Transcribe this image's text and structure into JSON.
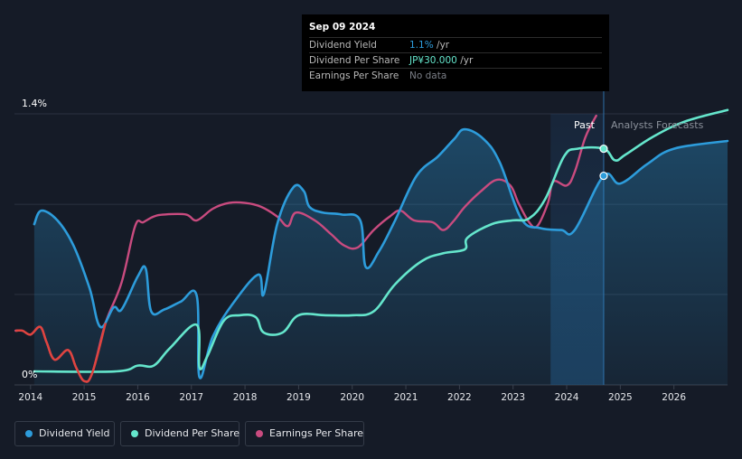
{
  "chart_data": {
    "type": "line",
    "y_axis": {
      "labels": [
        "1.4%",
        "0%"
      ],
      "ylim": [
        0,
        1.4
      ]
    },
    "x_axis": {
      "ticks": [
        "2014",
        "2015",
        "2016",
        "2017",
        "2018",
        "2019",
        "2020",
        "2021",
        "2022",
        "2023",
        "2024",
        "2025",
        "2026"
      ],
      "xlim": [
        2013.7,
        2027.0
      ]
    },
    "regions": {
      "past_label": "Past",
      "forecast_label": "Analysts Forecasts",
      "divider_x": 2024.69,
      "highlight_start": 2023.7
    },
    "tooltip": {
      "date": "Sep 09 2024",
      "rows": [
        {
          "label": "Dividend Yield",
          "value": "1.1%",
          "unit": " /yr",
          "color": "#2d9cdb"
        },
        {
          "label": "Dividend Per Share",
          "value": "JP¥30.000",
          "unit": " /yr",
          "color": "#65e6cc"
        },
        {
          "label": "Earnings Per Share",
          "value": "No data",
          "unit": "",
          "color": "#7b7f87"
        }
      ]
    },
    "series": [
      {
        "name": "Dividend Yield",
        "color": "#2d9cdb",
        "fill": true,
        "points": [
          [
            2014.07,
            0.83
          ],
          [
            2014.2,
            0.9
          ],
          [
            2014.5,
            0.85
          ],
          [
            2014.8,
            0.72
          ],
          [
            2015.1,
            0.5
          ],
          [
            2015.3,
            0.3
          ],
          [
            2015.55,
            0.4
          ],
          [
            2015.7,
            0.39
          ],
          [
            2016.0,
            0.56
          ],
          [
            2016.15,
            0.6
          ],
          [
            2016.25,
            0.38
          ],
          [
            2016.5,
            0.39
          ],
          [
            2016.8,
            0.43
          ],
          [
            2017.1,
            0.46
          ],
          [
            2017.15,
            0.04
          ],
          [
            2017.4,
            0.25
          ],
          [
            2017.8,
            0.43
          ],
          [
            2018.25,
            0.57
          ],
          [
            2018.35,
            0.47
          ],
          [
            2018.6,
            0.83
          ],
          [
            2018.9,
            1.02
          ],
          [
            2019.1,
            1.0
          ],
          [
            2019.2,
            0.92
          ],
          [
            2019.45,
            0.89
          ],
          [
            2019.8,
            0.88
          ],
          [
            2020.15,
            0.85
          ],
          [
            2020.25,
            0.61
          ],
          [
            2020.5,
            0.69
          ],
          [
            2020.8,
            0.85
          ],
          [
            2021.2,
            1.08
          ],
          [
            2021.6,
            1.18
          ],
          [
            2021.9,
            1.27
          ],
          [
            2022.1,
            1.32
          ],
          [
            2022.45,
            1.27
          ],
          [
            2022.75,
            1.15
          ],
          [
            2023.15,
            0.86
          ],
          [
            2023.5,
            0.81
          ],
          [
            2023.9,
            0.8
          ],
          [
            2024.15,
            0.8
          ],
          [
            2024.69,
            1.08
          ],
          [
            2025.0,
            1.04
          ],
          [
            2025.5,
            1.14
          ],
          [
            2026.0,
            1.22
          ],
          [
            2027.0,
            1.26
          ]
        ]
      },
      {
        "name": "Dividend Per Share",
        "color": "#65e6cc",
        "fill": false,
        "points": [
          [
            2014.07,
            0.07
          ],
          [
            2015.6,
            0.07
          ],
          [
            2016.0,
            0.1
          ],
          [
            2016.3,
            0.1
          ],
          [
            2016.6,
            0.19
          ],
          [
            2017.1,
            0.31
          ],
          [
            2017.15,
            0.09
          ],
          [
            2017.3,
            0.15
          ],
          [
            2017.6,
            0.33
          ],
          [
            2017.9,
            0.36
          ],
          [
            2018.2,
            0.35
          ],
          [
            2018.35,
            0.27
          ],
          [
            2018.7,
            0.27
          ],
          [
            2019.0,
            0.36
          ],
          [
            2019.5,
            0.36
          ],
          [
            2020.0,
            0.36
          ],
          [
            2020.4,
            0.38
          ],
          [
            2020.8,
            0.52
          ],
          [
            2021.3,
            0.64
          ],
          [
            2021.7,
            0.68
          ],
          [
            2022.1,
            0.7
          ],
          [
            2022.15,
            0.76
          ],
          [
            2022.6,
            0.83
          ],
          [
            2023.0,
            0.85
          ],
          [
            2023.3,
            0.86
          ],
          [
            2023.6,
            0.96
          ],
          [
            2023.95,
            1.18
          ],
          [
            2024.2,
            1.22
          ],
          [
            2024.69,
            1.22
          ],
          [
            2024.9,
            1.16
          ],
          [
            2025.1,
            1.19
          ],
          [
            2025.6,
            1.28
          ],
          [
            2026.2,
            1.36
          ],
          [
            2027.0,
            1.42
          ]
        ]
      },
      {
        "name": "Earnings Per Share",
        "color": "#c94b7f",
        "fill": false,
        "points": [
          [
            2013.72,
            0.28
          ],
          [
            2013.85,
            0.28
          ],
          [
            2014.0,
            0.26
          ],
          [
            2014.18,
            0.3
          ],
          [
            2014.3,
            0.22
          ],
          [
            2014.45,
            0.13
          ],
          [
            2014.7,
            0.18
          ],
          [
            2014.85,
            0.09
          ],
          [
            2015.0,
            0.02
          ],
          [
            2015.15,
            0.06
          ],
          [
            2015.4,
            0.32
          ],
          [
            2015.7,
            0.53
          ],
          [
            2015.95,
            0.82
          ],
          [
            2016.1,
            0.84
          ],
          [
            2016.3,
            0.87
          ],
          [
            2016.5,
            0.88
          ],
          [
            2016.9,
            0.88
          ],
          [
            2017.1,
            0.85
          ],
          [
            2017.4,
            0.91
          ],
          [
            2017.7,
            0.94
          ],
          [
            2018.0,
            0.94
          ],
          [
            2018.3,
            0.92
          ],
          [
            2018.6,
            0.87
          ],
          [
            2018.8,
            0.82
          ],
          [
            2018.95,
            0.89
          ],
          [
            2019.3,
            0.85
          ],
          [
            2019.6,
            0.78
          ],
          [
            2019.85,
            0.72
          ],
          [
            2020.1,
            0.71
          ],
          [
            2020.4,
            0.8
          ],
          [
            2020.7,
            0.87
          ],
          [
            2020.9,
            0.9
          ],
          [
            2021.15,
            0.85
          ],
          [
            2021.5,
            0.84
          ],
          [
            2021.7,
            0.8
          ],
          [
            2021.9,
            0.85
          ],
          [
            2022.1,
            0.92
          ],
          [
            2022.4,
            1.0
          ],
          [
            2022.7,
            1.06
          ],
          [
            2022.95,
            1.03
          ],
          [
            2023.1,
            0.94
          ],
          [
            2023.3,
            0.84
          ],
          [
            2023.45,
            0.82
          ],
          [
            2023.65,
            0.94
          ],
          [
            2023.75,
            1.05
          ],
          [
            2024.0,
            1.03
          ],
          [
            2024.15,
            1.1
          ],
          [
            2024.35,
            1.28
          ],
          [
            2024.55,
            1.39
          ]
        ]
      }
    ]
  },
  "legend": [
    {
      "label": "Dividend Yield",
      "color": "#2d9cdb"
    },
    {
      "label": "Dividend Per Share",
      "color": "#65e6cc"
    },
    {
      "label": "Earnings Per Share",
      "color": "#c94b7f"
    }
  ]
}
